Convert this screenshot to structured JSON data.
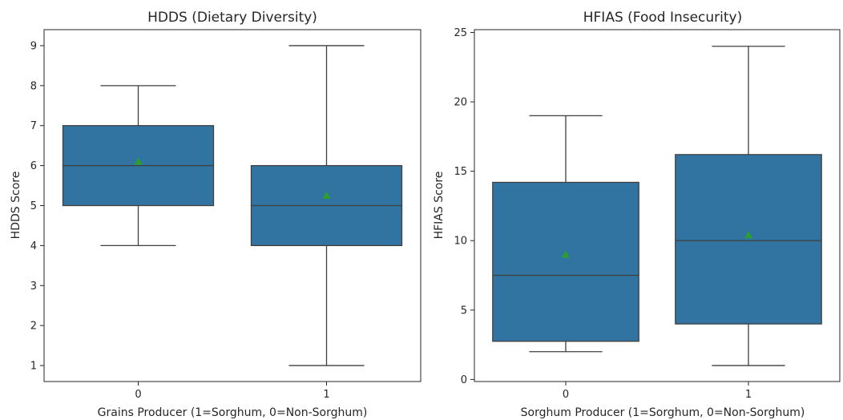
{
  "colors": {
    "box_fill": "#3274a1",
    "line": "#3f3f3f",
    "mean_marker": "#2ca02c",
    "axis": "#262626"
  },
  "chart_data": [
    {
      "type": "box",
      "title": "HDDS (Dietary Diversity)",
      "xlabel": "Grains Producer (1=Sorghum, 0=Non-Sorghum)",
      "ylabel": "HDDS Score",
      "categories": [
        "0",
        "1"
      ],
      "yticks": [
        1,
        2,
        3,
        4,
        5,
        6,
        7,
        8,
        9
      ],
      "ylim": [
        0.6,
        9.4
      ],
      "boxes": [
        {
          "category": "0",
          "whisker_low": 4,
          "q1": 5,
          "median": 6,
          "q3": 7,
          "whisker_high": 8,
          "mean": 6.1
        },
        {
          "category": "1",
          "whisker_low": 1,
          "q1": 4,
          "median": 5,
          "q3": 6,
          "whisker_high": 9,
          "mean": 5.25
        }
      ],
      "show_means": true,
      "grid": false
    },
    {
      "type": "box",
      "title": "HFIAS (Food Insecurity)",
      "xlabel": "Sorghum Producer (1=Sorghum, 0=Non-Sorghum)",
      "ylabel": "HFIAS Score",
      "categories": [
        "0",
        "1"
      ],
      "yticks": [
        0,
        5,
        10,
        15,
        20,
        25
      ],
      "ylim": [
        -0.15,
        25.2
      ],
      "boxes": [
        {
          "category": "0",
          "whisker_low": 2,
          "q1": 2.75,
          "median": 7.5,
          "q3": 14.2,
          "whisker_high": 19,
          "mean": 9
        },
        {
          "category": "1",
          "whisker_low": 1,
          "q1": 4,
          "median": 10,
          "q3": 16.2,
          "whisker_high": 24,
          "mean": 10.4
        }
      ],
      "show_means": true,
      "grid": false
    }
  ]
}
